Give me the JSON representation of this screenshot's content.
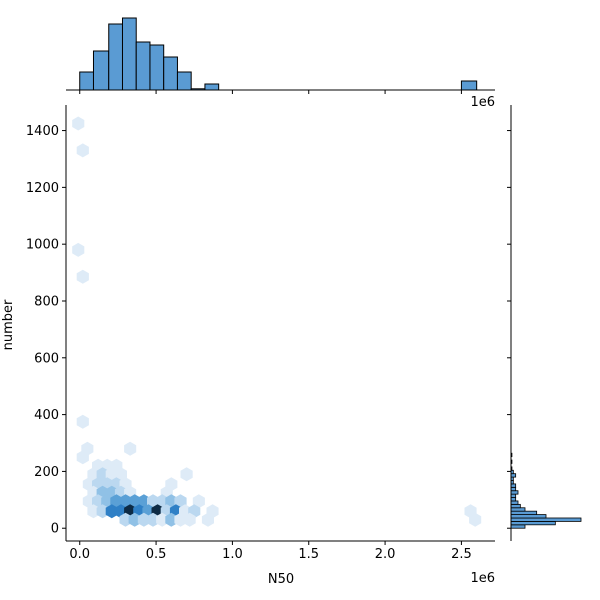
{
  "chart_data": {
    "type": "hexbin-jointplot",
    "xlabel": "N50",
    "ylabel": "number",
    "x_offset_label": "1e6",
    "x_scale_factor": 1000000,
    "xlim": [
      -0.09,
      2.72
    ],
    "ylim": [
      -45,
      1490
    ],
    "x_ticks": [
      0.0,
      0.5,
      1.0,
      1.5,
      2.0,
      2.5
    ],
    "x_tick_labels": [
      "0.0",
      "0.5",
      "1.0",
      "1.5",
      "2.0",
      "2.5"
    ],
    "y_ticks": [
      0,
      200,
      400,
      600,
      800,
      1000,
      1200,
      1400
    ],
    "y_tick_labels": [
      "0",
      "200",
      "400",
      "600",
      "800",
      "1000",
      "1200",
      "1400"
    ],
    "colors": {
      "hist_fill": "#5a9bd3",
      "hist_edge": "#000000",
      "hex_levels": [
        "#deebf7",
        "#bbd8f0",
        "#90c1e6",
        "#5aa0d6",
        "#2f80c6",
        "#1c5c95",
        "#0d2b45"
      ]
    },
    "hexbins": [
      {
        "x": -0.01,
        "y": 1425,
        "level": 1
      },
      {
        "x": 0.02,
        "y": 1330,
        "level": 1
      },
      {
        "x": -0.01,
        "y": 980,
        "level": 1
      },
      {
        "x": 0.02,
        "y": 885,
        "level": 1
      },
      {
        "x": 0.02,
        "y": 375,
        "level": 1
      },
      {
        "x": 0.05,
        "y": 280,
        "level": 1
      },
      {
        "x": 0.02,
        "y": 250,
        "level": 1
      },
      {
        "x": 0.33,
        "y": 280,
        "level": 1
      },
      {
        "x": 0.12,
        "y": 220,
        "level": 1
      },
      {
        "x": 0.18,
        "y": 220,
        "level": 1
      },
      {
        "x": 0.24,
        "y": 220,
        "level": 1
      },
      {
        "x": 0.09,
        "y": 190,
        "level": 1
      },
      {
        "x": 0.15,
        "y": 190,
        "level": 2
      },
      {
        "x": 0.21,
        "y": 190,
        "level": 1
      },
      {
        "x": 0.27,
        "y": 190,
        "level": 1
      },
      {
        "x": 0.7,
        "y": 190,
        "level": 1
      },
      {
        "x": 0.06,
        "y": 155,
        "level": 1
      },
      {
        "x": 0.12,
        "y": 155,
        "level": 2
      },
      {
        "x": 0.18,
        "y": 155,
        "level": 2
      },
      {
        "x": 0.24,
        "y": 155,
        "level": 2
      },
      {
        "x": 0.3,
        "y": 155,
        "level": 1
      },
      {
        "x": 0.6,
        "y": 155,
        "level": 1
      },
      {
        "x": 0.09,
        "y": 125,
        "level": 1
      },
      {
        "x": 0.15,
        "y": 125,
        "level": 3
      },
      {
        "x": 0.21,
        "y": 125,
        "level": 3
      },
      {
        "x": 0.27,
        "y": 125,
        "level": 2
      },
      {
        "x": 0.33,
        "y": 125,
        "level": 1
      },
      {
        "x": 0.57,
        "y": 125,
        "level": 1
      },
      {
        "x": 0.06,
        "y": 95,
        "level": 1
      },
      {
        "x": 0.12,
        "y": 95,
        "level": 2
      },
      {
        "x": 0.18,
        "y": 95,
        "level": 3
      },
      {
        "x": 0.24,
        "y": 95,
        "level": 4
      },
      {
        "x": 0.3,
        "y": 95,
        "level": 4
      },
      {
        "x": 0.36,
        "y": 95,
        "level": 4
      },
      {
        "x": 0.42,
        "y": 95,
        "level": 4
      },
      {
        "x": 0.48,
        "y": 95,
        "level": 2
      },
      {
        "x": 0.54,
        "y": 95,
        "level": 2
      },
      {
        "x": 0.6,
        "y": 95,
        "level": 3
      },
      {
        "x": 0.66,
        "y": 95,
        "level": 2
      },
      {
        "x": 0.78,
        "y": 95,
        "level": 1
      },
      {
        "x": 0.09,
        "y": 60,
        "level": 1
      },
      {
        "x": 0.15,
        "y": 60,
        "level": 2
      },
      {
        "x": 0.21,
        "y": 60,
        "level": 5
      },
      {
        "x": 0.27,
        "y": 60,
        "level": 5
      },
      {
        "x": 0.33,
        "y": 60,
        "level": 7
      },
      {
        "x": 0.39,
        "y": 60,
        "level": 5
      },
      {
        "x": 0.45,
        "y": 60,
        "level": 4
      },
      {
        "x": 0.51,
        "y": 60,
        "level": 7
      },
      {
        "x": 0.57,
        "y": 60,
        "level": 2
      },
      {
        "x": 0.63,
        "y": 60,
        "level": 5
      },
      {
        "x": 0.69,
        "y": 60,
        "level": 1
      },
      {
        "x": 0.75,
        "y": 60,
        "level": 2
      },
      {
        "x": 0.87,
        "y": 60,
        "level": 1
      },
      {
        "x": 2.56,
        "y": 60,
        "level": 1
      },
      {
        "x": 0.3,
        "y": 30,
        "level": 2
      },
      {
        "x": 0.36,
        "y": 30,
        "level": 3
      },
      {
        "x": 0.42,
        "y": 30,
        "level": 2
      },
      {
        "x": 0.48,
        "y": 30,
        "level": 2
      },
      {
        "x": 0.54,
        "y": 30,
        "level": 1
      },
      {
        "x": 0.6,
        "y": 30,
        "level": 3
      },
      {
        "x": 0.66,
        "y": 30,
        "level": 1
      },
      {
        "x": 0.72,
        "y": 30,
        "level": 1
      },
      {
        "x": 0.84,
        "y": 30,
        "level": 1
      },
      {
        "x": 2.59,
        "y": 30,
        "level": 1
      }
    ],
    "x_histogram": {
      "bins": [
        {
          "x0": 0.0,
          "x1": 0.09,
          "count": 6
        },
        {
          "x0": 0.09,
          "x1": 0.19,
          "count": 13
        },
        {
          "x0": 0.19,
          "x1": 0.28,
          "count": 22
        },
        {
          "x0": 0.28,
          "x1": 0.37,
          "count": 24
        },
        {
          "x0": 0.37,
          "x1": 0.46,
          "count": 16
        },
        {
          "x0": 0.46,
          "x1": 0.55,
          "count": 15
        },
        {
          "x0": 0.55,
          "x1": 0.64,
          "count": 11
        },
        {
          "x0": 0.64,
          "x1": 0.73,
          "count": 6
        },
        {
          "x0": 0.73,
          "x1": 0.82,
          "count": 0.4
        },
        {
          "x0": 0.82,
          "x1": 0.91,
          "count": 2
        },
        {
          "x0": 2.5,
          "x1": 2.6,
          "count": 3
        }
      ]
    },
    "y_histogram": {
      "bins": [
        {
          "y0": 0,
          "y1": 12,
          "count": 6
        },
        {
          "y0": 12,
          "y1": 24,
          "count": 19
        },
        {
          "y0": 24,
          "y1": 36,
          "count": 30
        },
        {
          "y0": 36,
          "y1": 48,
          "count": 15
        },
        {
          "y0": 48,
          "y1": 60,
          "count": 11
        },
        {
          "y0": 60,
          "y1": 72,
          "count": 6
        },
        {
          "y0": 72,
          "y1": 84,
          "count": 4
        },
        {
          "y0": 84,
          "y1": 96,
          "count": 3
        },
        {
          "y0": 96,
          "y1": 108,
          "count": 2
        },
        {
          "y0": 108,
          "y1": 120,
          "count": 2
        },
        {
          "y0": 120,
          "y1": 132,
          "count": 3
        },
        {
          "y0": 132,
          "y1": 144,
          "count": 2
        },
        {
          "y0": 144,
          "y1": 156,
          "count": 2
        },
        {
          "y0": 156,
          "y1": 168,
          "count": 1
        },
        {
          "y0": 168,
          "y1": 180,
          "count": 1
        },
        {
          "y0": 180,
          "y1": 192,
          "count": 2
        },
        {
          "y0": 192,
          "y1": 204,
          "count": 1
        },
        {
          "y0": 204,
          "y1": 216,
          "count": 0.4
        },
        {
          "y0": 228,
          "y1": 240,
          "count": 0.4
        },
        {
          "y0": 252,
          "y1": 264,
          "count": 0.4
        }
      ]
    }
  }
}
